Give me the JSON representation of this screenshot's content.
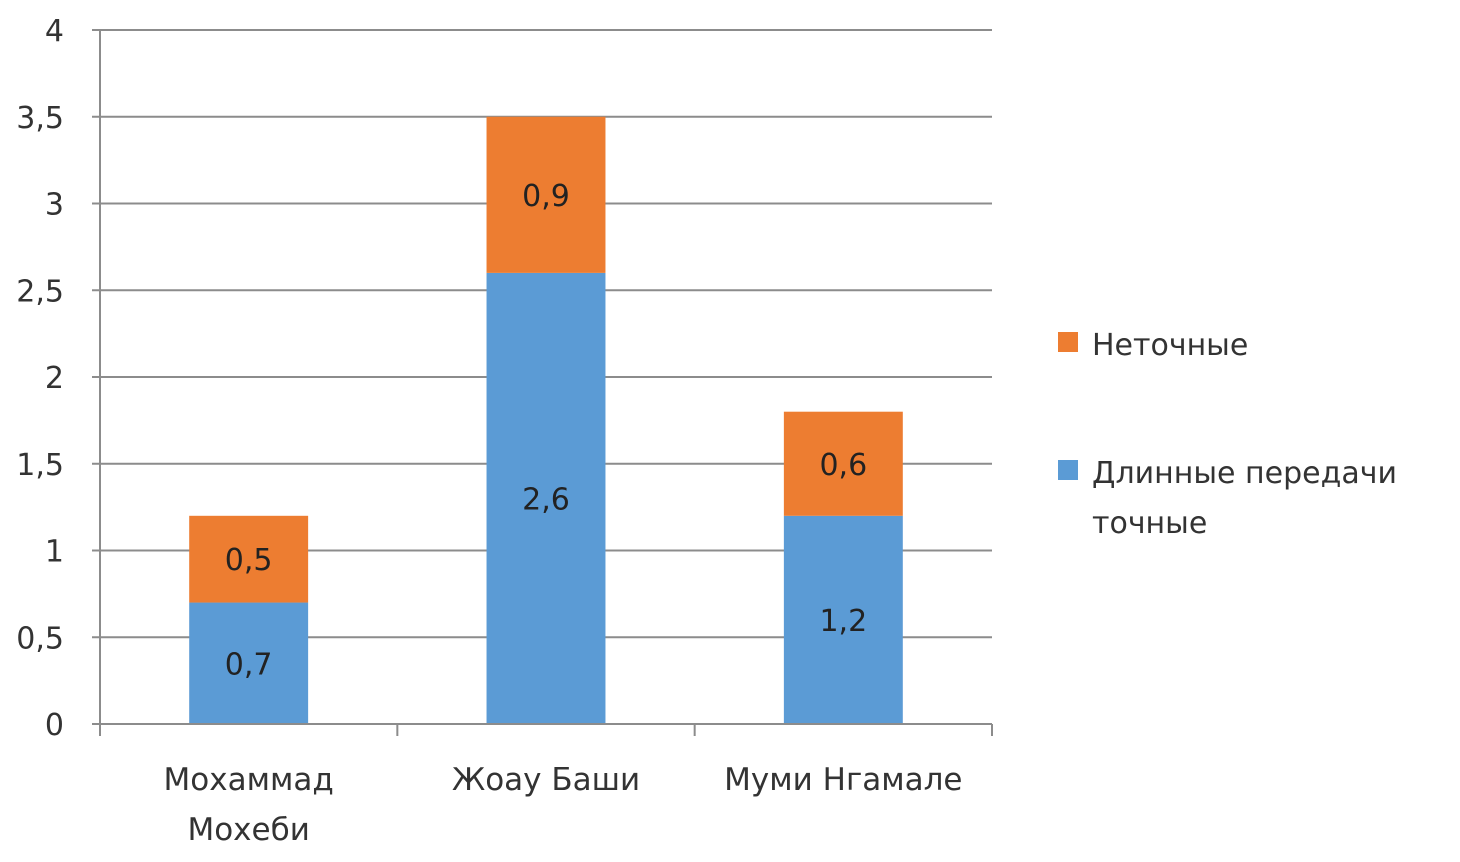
{
  "chart_data": {
    "type": "bar",
    "stacked": true,
    "categories": [
      [
        "Мохаммад",
        "Мохеби"
      ],
      [
        "Жоау Баши"
      ],
      [
        "Муми  Нгамале"
      ]
    ],
    "series": [
      {
        "name": "Длинные передачи точные",
        "legend_lines": [
          "Длинные передачи",
          "точные"
        ],
        "color": "#5b9bd5",
        "values": [
          0.7,
          2.6,
          1.2
        ],
        "labels": [
          "0,7",
          "2,6",
          "1,2"
        ]
      },
      {
        "name": "Неточные",
        "legend_lines": [
          "Неточные"
        ],
        "color": "#ed7d31",
        "values": [
          0.5,
          0.9,
          0.6
        ],
        "labels": [
          "0,5",
          "0,9",
          "0,6"
        ]
      }
    ],
    "yticks": [
      "0",
      "0,5",
      "1",
      "1,5",
      "2",
      "2,5",
      "3",
      "3,5",
      "4"
    ],
    "ylim": [
      0,
      4
    ],
    "grid": true,
    "legend_position": "right",
    "title": "",
    "xlabel": "",
    "ylabel": ""
  }
}
